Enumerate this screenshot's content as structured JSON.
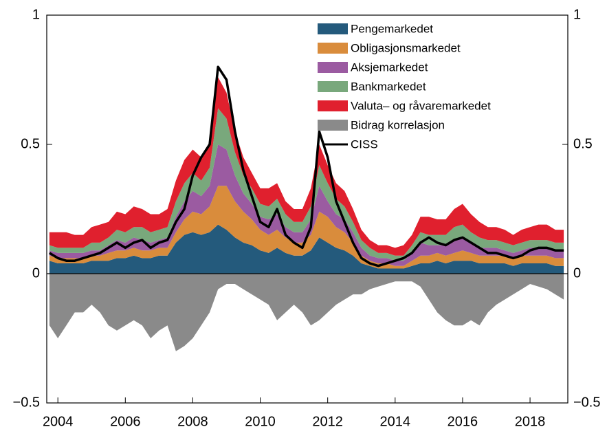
{
  "chart_data": {
    "type": "stacked_area",
    "x": [
      2003.75,
      2004,
      2004.25,
      2004.5,
      2004.75,
      2005,
      2005.25,
      2005.5,
      2005.75,
      2006,
      2006.25,
      2006.5,
      2006.75,
      2007,
      2007.25,
      2007.5,
      2007.75,
      2008,
      2008.25,
      2008.5,
      2008.75,
      2009,
      2009.25,
      2009.5,
      2009.75,
      2010,
      2010.25,
      2010.5,
      2010.75,
      2011,
      2011.25,
      2011.5,
      2011.75,
      2012,
      2012.25,
      2012.5,
      2012.75,
      2013,
      2013.25,
      2013.5,
      2013.75,
      2014,
      2014.25,
      2014.5,
      2014.75,
      2015,
      2015.25,
      2015.5,
      2015.75,
      2016,
      2016.25,
      2016.5,
      2016.75,
      2017,
      2017.25,
      2017.5,
      2017.75,
      2018,
      2018.25,
      2018.5,
      2018.75,
      2019
    ],
    "series": [
      {
        "name": "Pengemarkedet",
        "color": "#245a7c",
        "values": [
          0.05,
          0.04,
          0.04,
          0.04,
          0.04,
          0.05,
          0.05,
          0.05,
          0.06,
          0.06,
          0.07,
          0.06,
          0.06,
          0.07,
          0.07,
          0.12,
          0.15,
          0.16,
          0.15,
          0.16,
          0.19,
          0.17,
          0.14,
          0.12,
          0.11,
          0.09,
          0.08,
          0.1,
          0.08,
          0.07,
          0.07,
          0.09,
          0.14,
          0.12,
          0.1,
          0.09,
          0.07,
          0.04,
          0.03,
          0.02,
          0.02,
          0.02,
          0.02,
          0.03,
          0.04,
          0.04,
          0.05,
          0.04,
          0.05,
          0.05,
          0.05,
          0.04,
          0.04,
          0.04,
          0.04,
          0.03,
          0.04,
          0.04,
          0.04,
          0.04,
          0.03,
          0.03
        ]
      },
      {
        "name": "Obligasjonsmarkedet",
        "color": "#d98c3c",
        "values": [
          0.02,
          0.02,
          0.02,
          0.02,
          0.02,
          0.02,
          0.02,
          0.03,
          0.03,
          0.03,
          0.03,
          0.03,
          0.03,
          0.03,
          0.03,
          0.04,
          0.06,
          0.08,
          0.08,
          0.1,
          0.15,
          0.17,
          0.14,
          0.12,
          0.1,
          0.08,
          0.07,
          0.07,
          0.06,
          0.05,
          0.05,
          0.06,
          0.1,
          0.1,
          0.08,
          0.07,
          0.05,
          0.03,
          0.02,
          0.02,
          0.02,
          0.01,
          0.01,
          0.02,
          0.03,
          0.03,
          0.03,
          0.03,
          0.03,
          0.04,
          0.03,
          0.03,
          0.03,
          0.03,
          0.03,
          0.03,
          0.03,
          0.03,
          0.03,
          0.03,
          0.03,
          0.03
        ]
      },
      {
        "name": "Aksjemarkedet",
        "color": "#9b5ba1",
        "values": [
          0.02,
          0.02,
          0.02,
          0.02,
          0.02,
          0.02,
          0.02,
          0.03,
          0.04,
          0.03,
          0.04,
          0.04,
          0.03,
          0.03,
          0.04,
          0.06,
          0.07,
          0.08,
          0.07,
          0.08,
          0.16,
          0.14,
          0.1,
          0.07,
          0.06,
          0.05,
          0.06,
          0.06,
          0.04,
          0.04,
          0.04,
          0.06,
          0.1,
          0.06,
          0.05,
          0.05,
          0.04,
          0.03,
          0.02,
          0.02,
          0.02,
          0.02,
          0.02,
          0.03,
          0.05,
          0.04,
          0.03,
          0.04,
          0.05,
          0.05,
          0.04,
          0.03,
          0.03,
          0.03,
          0.02,
          0.02,
          0.02,
          0.03,
          0.03,
          0.03,
          0.03,
          0.03
        ]
      },
      {
        "name": "Bankmarkedet",
        "color": "#79a87c",
        "values": [
          0.02,
          0.02,
          0.02,
          0.02,
          0.02,
          0.03,
          0.03,
          0.03,
          0.04,
          0.04,
          0.04,
          0.05,
          0.04,
          0.04,
          0.04,
          0.06,
          0.07,
          0.07,
          0.06,
          0.07,
          0.14,
          0.12,
          0.09,
          0.07,
          0.06,
          0.05,
          0.05,
          0.06,
          0.05,
          0.04,
          0.04,
          0.05,
          0.08,
          0.07,
          0.06,
          0.05,
          0.04,
          0.03,
          0.03,
          0.02,
          0.02,
          0.02,
          0.02,
          0.03,
          0.04,
          0.04,
          0.04,
          0.04,
          0.05,
          0.05,
          0.04,
          0.04,
          0.03,
          0.03,
          0.03,
          0.03,
          0.03,
          0.03,
          0.03,
          0.03,
          0.03,
          0.03
        ]
      },
      {
        "name": "Valuta– og råvaremarkedet",
        "color": "#e0202e",
        "values": [
          0.05,
          0.06,
          0.06,
          0.05,
          0.05,
          0.06,
          0.07,
          0.06,
          0.07,
          0.07,
          0.08,
          0.07,
          0.07,
          0.06,
          0.07,
          0.08,
          0.09,
          0.09,
          0.09,
          0.1,
          0.12,
          0.1,
          0.08,
          0.07,
          0.06,
          0.06,
          0.07,
          0.06,
          0.05,
          0.05,
          0.05,
          0.07,
          0.08,
          0.07,
          0.06,
          0.06,
          0.05,
          0.04,
          0.03,
          0.03,
          0.03,
          0.03,
          0.04,
          0.04,
          0.06,
          0.07,
          0.06,
          0.06,
          0.07,
          0.08,
          0.07,
          0.06,
          0.05,
          0.05,
          0.05,
          0.04,
          0.05,
          0.05,
          0.06,
          0.06,
          0.05,
          0.05
        ]
      },
      {
        "name": "Bidrag korrelasjon",
        "color": "#8a8a8a",
        "values": [
          -0.2,
          -0.25,
          -0.2,
          -0.15,
          -0.15,
          -0.12,
          -0.15,
          -0.2,
          -0.22,
          -0.2,
          -0.18,
          -0.2,
          -0.25,
          -0.22,
          -0.2,
          -0.3,
          -0.28,
          -0.25,
          -0.2,
          -0.15,
          -0.06,
          -0.04,
          -0.04,
          -0.06,
          -0.08,
          -0.1,
          -0.12,
          -0.18,
          -0.15,
          -0.12,
          -0.15,
          -0.2,
          -0.18,
          -0.15,
          -0.12,
          -0.1,
          -0.08,
          -0.08,
          -0.06,
          -0.05,
          -0.04,
          -0.03,
          -0.03,
          -0.03,
          -0.05,
          -0.1,
          -0.15,
          -0.18,
          -0.2,
          -0.2,
          -0.18,
          -0.2,
          -0.15,
          -0.12,
          -0.1,
          -0.08,
          -0.06,
          -0.04,
          -0.05,
          -0.06,
          -0.08,
          -0.1
        ]
      },
      {
        "name": "CISS",
        "color": "#000000",
        "kind": "line",
        "values": [
          0.08,
          0.06,
          0.05,
          0.05,
          0.06,
          0.07,
          0.08,
          0.1,
          0.12,
          0.1,
          0.12,
          0.13,
          0.1,
          0.12,
          0.13,
          0.2,
          0.25,
          0.38,
          0.45,
          0.5,
          0.8,
          0.75,
          0.55,
          0.4,
          0.3,
          0.2,
          0.18,
          0.25,
          0.15,
          0.12,
          0.1,
          0.18,
          0.55,
          0.45,
          0.28,
          0.2,
          0.12,
          0.06,
          0.04,
          0.03,
          0.04,
          0.05,
          0.06,
          0.08,
          0.12,
          0.14,
          0.12,
          0.11,
          0.13,
          0.14,
          0.12,
          0.1,
          0.08,
          0.08,
          0.07,
          0.06,
          0.07,
          0.09,
          0.1,
          0.1,
          0.09,
          0.09
        ]
      }
    ],
    "xlim": [
      2003.67,
      2019.12
    ],
    "xticks": [
      2004,
      2006,
      2008,
      2010,
      2012,
      2014,
      2016,
      2018
    ],
    "ylim": [
      -0.5,
      1
    ],
    "yticks": [
      {
        "value": -0.5,
        "label": "−0.5"
      },
      0,
      0.5,
      1
    ],
    "y2lim": [
      -0.5,
      1
    ],
    "y2ticks": [
      {
        "value": -0.5,
        "label": "−0.5"
      },
      0,
      0.5,
      1
    ],
    "legend": "top"
  }
}
